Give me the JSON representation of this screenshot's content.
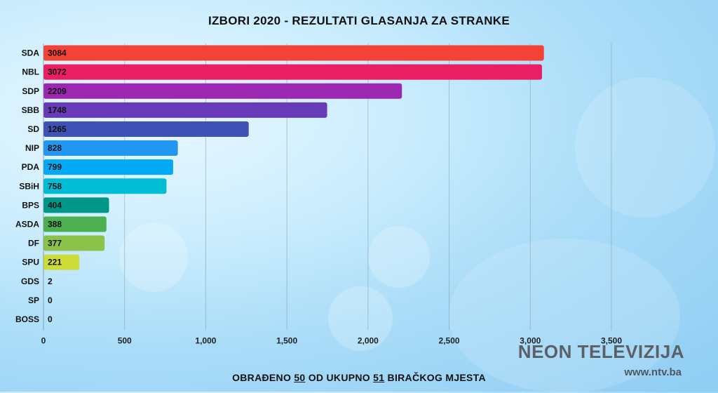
{
  "chart_data": {
    "type": "bar",
    "orientation": "horizontal",
    "title": "IZBORI 2020 - REZULTATI GLASANJA ZA STRANKE",
    "categories": [
      "SDA",
      "NBL",
      "SDP",
      "SBB",
      "SD",
      "NIP",
      "PDA",
      "SBiH",
      "BPS",
      "ASDA",
      "DF",
      "SPU",
      "GDS",
      "SP",
      "BOSS"
    ],
    "values": [
      3084,
      3072,
      2209,
      1748,
      1265,
      828,
      799,
      758,
      404,
      388,
      377,
      221,
      2,
      0,
      0
    ],
    "value_labels": [
      "3084",
      "3072",
      "2209",
      "1748",
      "1265",
      "828",
      "799",
      "758",
      "404",
      "388",
      "377",
      "221",
      "2",
      "0",
      "0"
    ],
    "colors": [
      "#f44336",
      "#e91e63",
      "#9c27b0",
      "#673ab7",
      "#3f51b5",
      "#2196f3",
      "#03a9f4",
      "#00bcd4",
      "#009688",
      "#4caf50",
      "#8bc34a",
      "#cddc39",
      "#ffeb3b",
      "#ffc107",
      "#ff9800"
    ],
    "xlim": [
      0,
      3500
    ],
    "xticks": [
      0,
      500,
      1000,
      1500,
      2000,
      2500,
      3000,
      3500
    ],
    "xtick_labels": [
      "0",
      "500",
      "1,000",
      "1,500",
      "2,000",
      "2,500",
      "3,000",
      "3,500"
    ],
    "xlabel": "",
    "ylabel": "",
    "grid": "vertical"
  },
  "footer": {
    "prefix": "OBRAĐENO ",
    "processed": "50",
    "middle": " OD UKUPNO ",
    "total": "51",
    "suffix": " BIRAČKOG MJESTA"
  },
  "brand": {
    "name": "NEON TELEVIZIJA",
    "url": "www.ntv.ba"
  }
}
